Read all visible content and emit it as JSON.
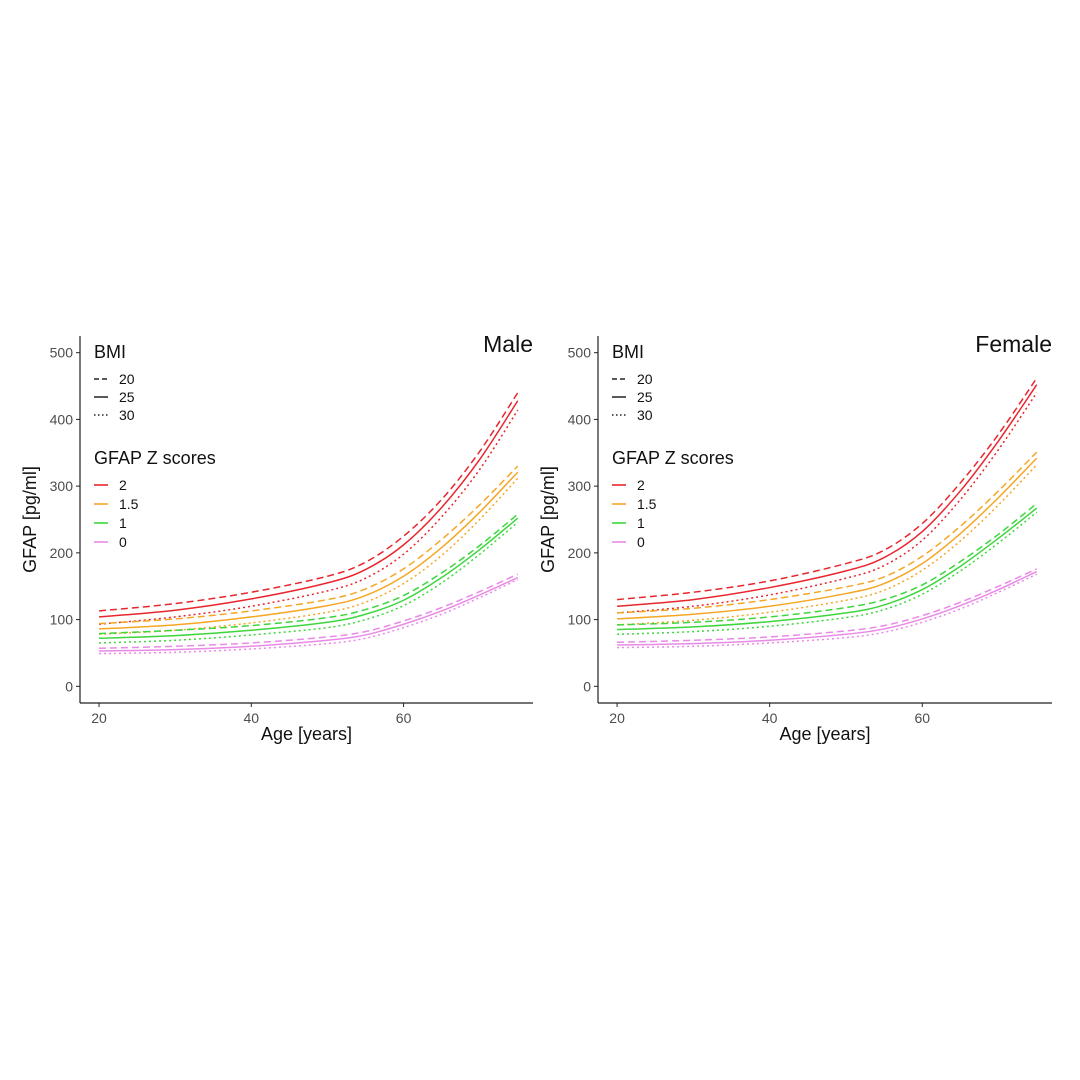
{
  "chart_data": [
    {
      "type": "line",
      "panel_title": "Male",
      "xlabel": "Age [years]",
      "ylabel": "GFAP [pg/ml]",
      "xlim": [
        17.5,
        77
      ],
      "ylim": [
        -25,
        525
      ],
      "x_ticks": [
        20,
        40,
        60
      ],
      "y_ticks": [
        0,
        100,
        200,
        300,
        400,
        500
      ],
      "grid": false,
      "legend_groups": [
        {
          "title": "BMI",
          "entries": [
            {
              "label": "20",
              "dash": "dashed"
            },
            {
              "label": "25",
              "dash": "solid"
            },
            {
              "label": "30",
              "dash": "dotted"
            }
          ]
        },
        {
          "title": "GFAP Z scores",
          "entries": [
            {
              "label": "2",
              "color": "#e8262e"
            },
            {
              "label": "1.5",
              "color": "#f5a623"
            },
            {
              "label": "1",
              "color": "#3ed63e"
            },
            {
              "label": "0",
              "color": "#e98ae6"
            }
          ]
        }
      ],
      "x": [
        20,
        30,
        40,
        50,
        55,
        60,
        65,
        70,
        75
      ],
      "series": [
        {
          "z": "2",
          "bmi": "20",
          "values": [
            113,
            124,
            141,
            165,
            186,
            225,
            280,
            352,
            440
          ]
        },
        {
          "z": "2",
          "bmi": "25",
          "values": [
            104,
            114,
            131,
            155,
            175,
            212,
            268,
            340,
            428
          ]
        },
        {
          "z": "2",
          "bmi": "30",
          "values": [
            93,
            104,
            120,
            143,
            162,
            198,
            254,
            325,
            414
          ]
        },
        {
          "z": "1.5",
          "bmi": "20",
          "values": [
            94,
            101,
            113,
            130,
            146,
            176,
            220,
            272,
            330
          ]
        },
        {
          "z": "1.5",
          "bmi": "25",
          "values": [
            86,
            92,
            104,
            121,
            136,
            165,
            208,
            261,
            321
          ]
        },
        {
          "z": "1.5",
          "bmi": "30",
          "values": [
            78,
            84,
            95,
            111,
            126,
            154,
            196,
            250,
            312
          ]
        },
        {
          "z": "1",
          "bmi": "20",
          "values": [
            79,
            84,
            91,
            103,
            115,
            136,
            170,
            211,
            258
          ]
        },
        {
          "z": "1",
          "bmi": "25",
          "values": [
            72,
            76,
            84,
            96,
            108,
            129,
            163,
            205,
            252
          ]
        },
        {
          "z": "1",
          "bmi": "30",
          "values": [
            65,
            69,
            77,
            88,
            100,
            121,
            155,
            198,
            246
          ]
        },
        {
          "z": "0",
          "bmi": "20",
          "values": [
            57,
            60,
            65,
            74,
            82,
            98,
            118,
            142,
            168
          ]
        },
        {
          "z": "0",
          "bmi": "25",
          "values": [
            53,
            55,
            60,
            69,
            77,
            93,
            113,
            137,
            163
          ]
        },
        {
          "z": "0",
          "bmi": "30",
          "values": [
            49,
            51,
            56,
            64,
            72,
            88,
            108,
            133,
            160
          ]
        }
      ]
    },
    {
      "type": "line",
      "panel_title": "Female",
      "xlabel": "Age [years]",
      "ylabel": "GFAP [pg/ml]",
      "xlim": [
        17.5,
        77
      ],
      "ylim": [
        -25,
        525
      ],
      "x_ticks": [
        20,
        40,
        60
      ],
      "y_ticks": [
        0,
        100,
        200,
        300,
        400,
        500
      ],
      "grid": false,
      "legend_groups": [
        {
          "title": "BMI",
          "entries": [
            {
              "label": "20",
              "dash": "dashed"
            },
            {
              "label": "25",
              "dash": "solid"
            },
            {
              "label": "30",
              "dash": "dotted"
            }
          ]
        },
        {
          "title": "GFAP Z scores",
          "entries": [
            {
              "label": "2",
              "color": "#e8262e"
            },
            {
              "label": "1.5",
              "color": "#f5a623"
            },
            {
              "label": "1",
              "color": "#3ed63e"
            },
            {
              "label": "0",
              "color": "#e98ae6"
            }
          ]
        }
      ],
      "x": [
        20,
        30,
        40,
        50,
        55,
        60,
        65,
        70,
        75
      ],
      "series": [
        {
          "z": "2",
          "bmi": "20",
          "values": [
            130,
            141,
            158,
            184,
            204,
            244,
            305,
            378,
            462
          ]
        },
        {
          "z": "2",
          "bmi": "25",
          "values": [
            120,
            130,
            148,
            173,
            193,
            232,
            293,
            368,
            452
          ]
        },
        {
          "z": "2",
          "bmi": "30",
          "values": [
            110,
            120,
            137,
            162,
            181,
            219,
            280,
            355,
            440
          ]
        },
        {
          "z": "1.5",
          "bmi": "20",
          "values": [
            110,
            117,
            130,
            149,
            164,
            195,
            240,
            293,
            351
          ]
        },
        {
          "z": "1.5",
          "bmi": "25",
          "values": [
            101,
            108,
            120,
            139,
            154,
            184,
            229,
            283,
            342
          ]
        },
        {
          "z": "1.5",
          "bmi": "30",
          "values": [
            92,
            99,
            111,
            129,
            144,
            174,
            218,
            272,
            332
          ]
        },
        {
          "z": "1",
          "bmi": "20",
          "values": [
            92,
            96,
            104,
            118,
            130,
            152,
            187,
            228,
            274
          ]
        },
        {
          "z": "1",
          "bmi": "25",
          "values": [
            85,
            89,
            97,
            110,
            122,
            145,
            180,
            222,
            267
          ]
        },
        {
          "z": "1",
          "bmi": "30",
          "values": [
            78,
            82,
            90,
            103,
            115,
            138,
            173,
            215,
            261
          ]
        },
        {
          "z": "0",
          "bmi": "20",
          "values": [
            66,
            69,
            74,
            83,
            91,
            106,
            126,
            150,
            176
          ]
        },
        {
          "z": "0",
          "bmi": "25",
          "values": [
            62,
            64,
            69,
            78,
            86,
            101,
            121,
            145,
            172
          ]
        },
        {
          "z": "0",
          "bmi": "30",
          "values": [
            58,
            60,
            65,
            73,
            81,
            96,
            116,
            141,
            168
          ]
        }
      ]
    }
  ]
}
